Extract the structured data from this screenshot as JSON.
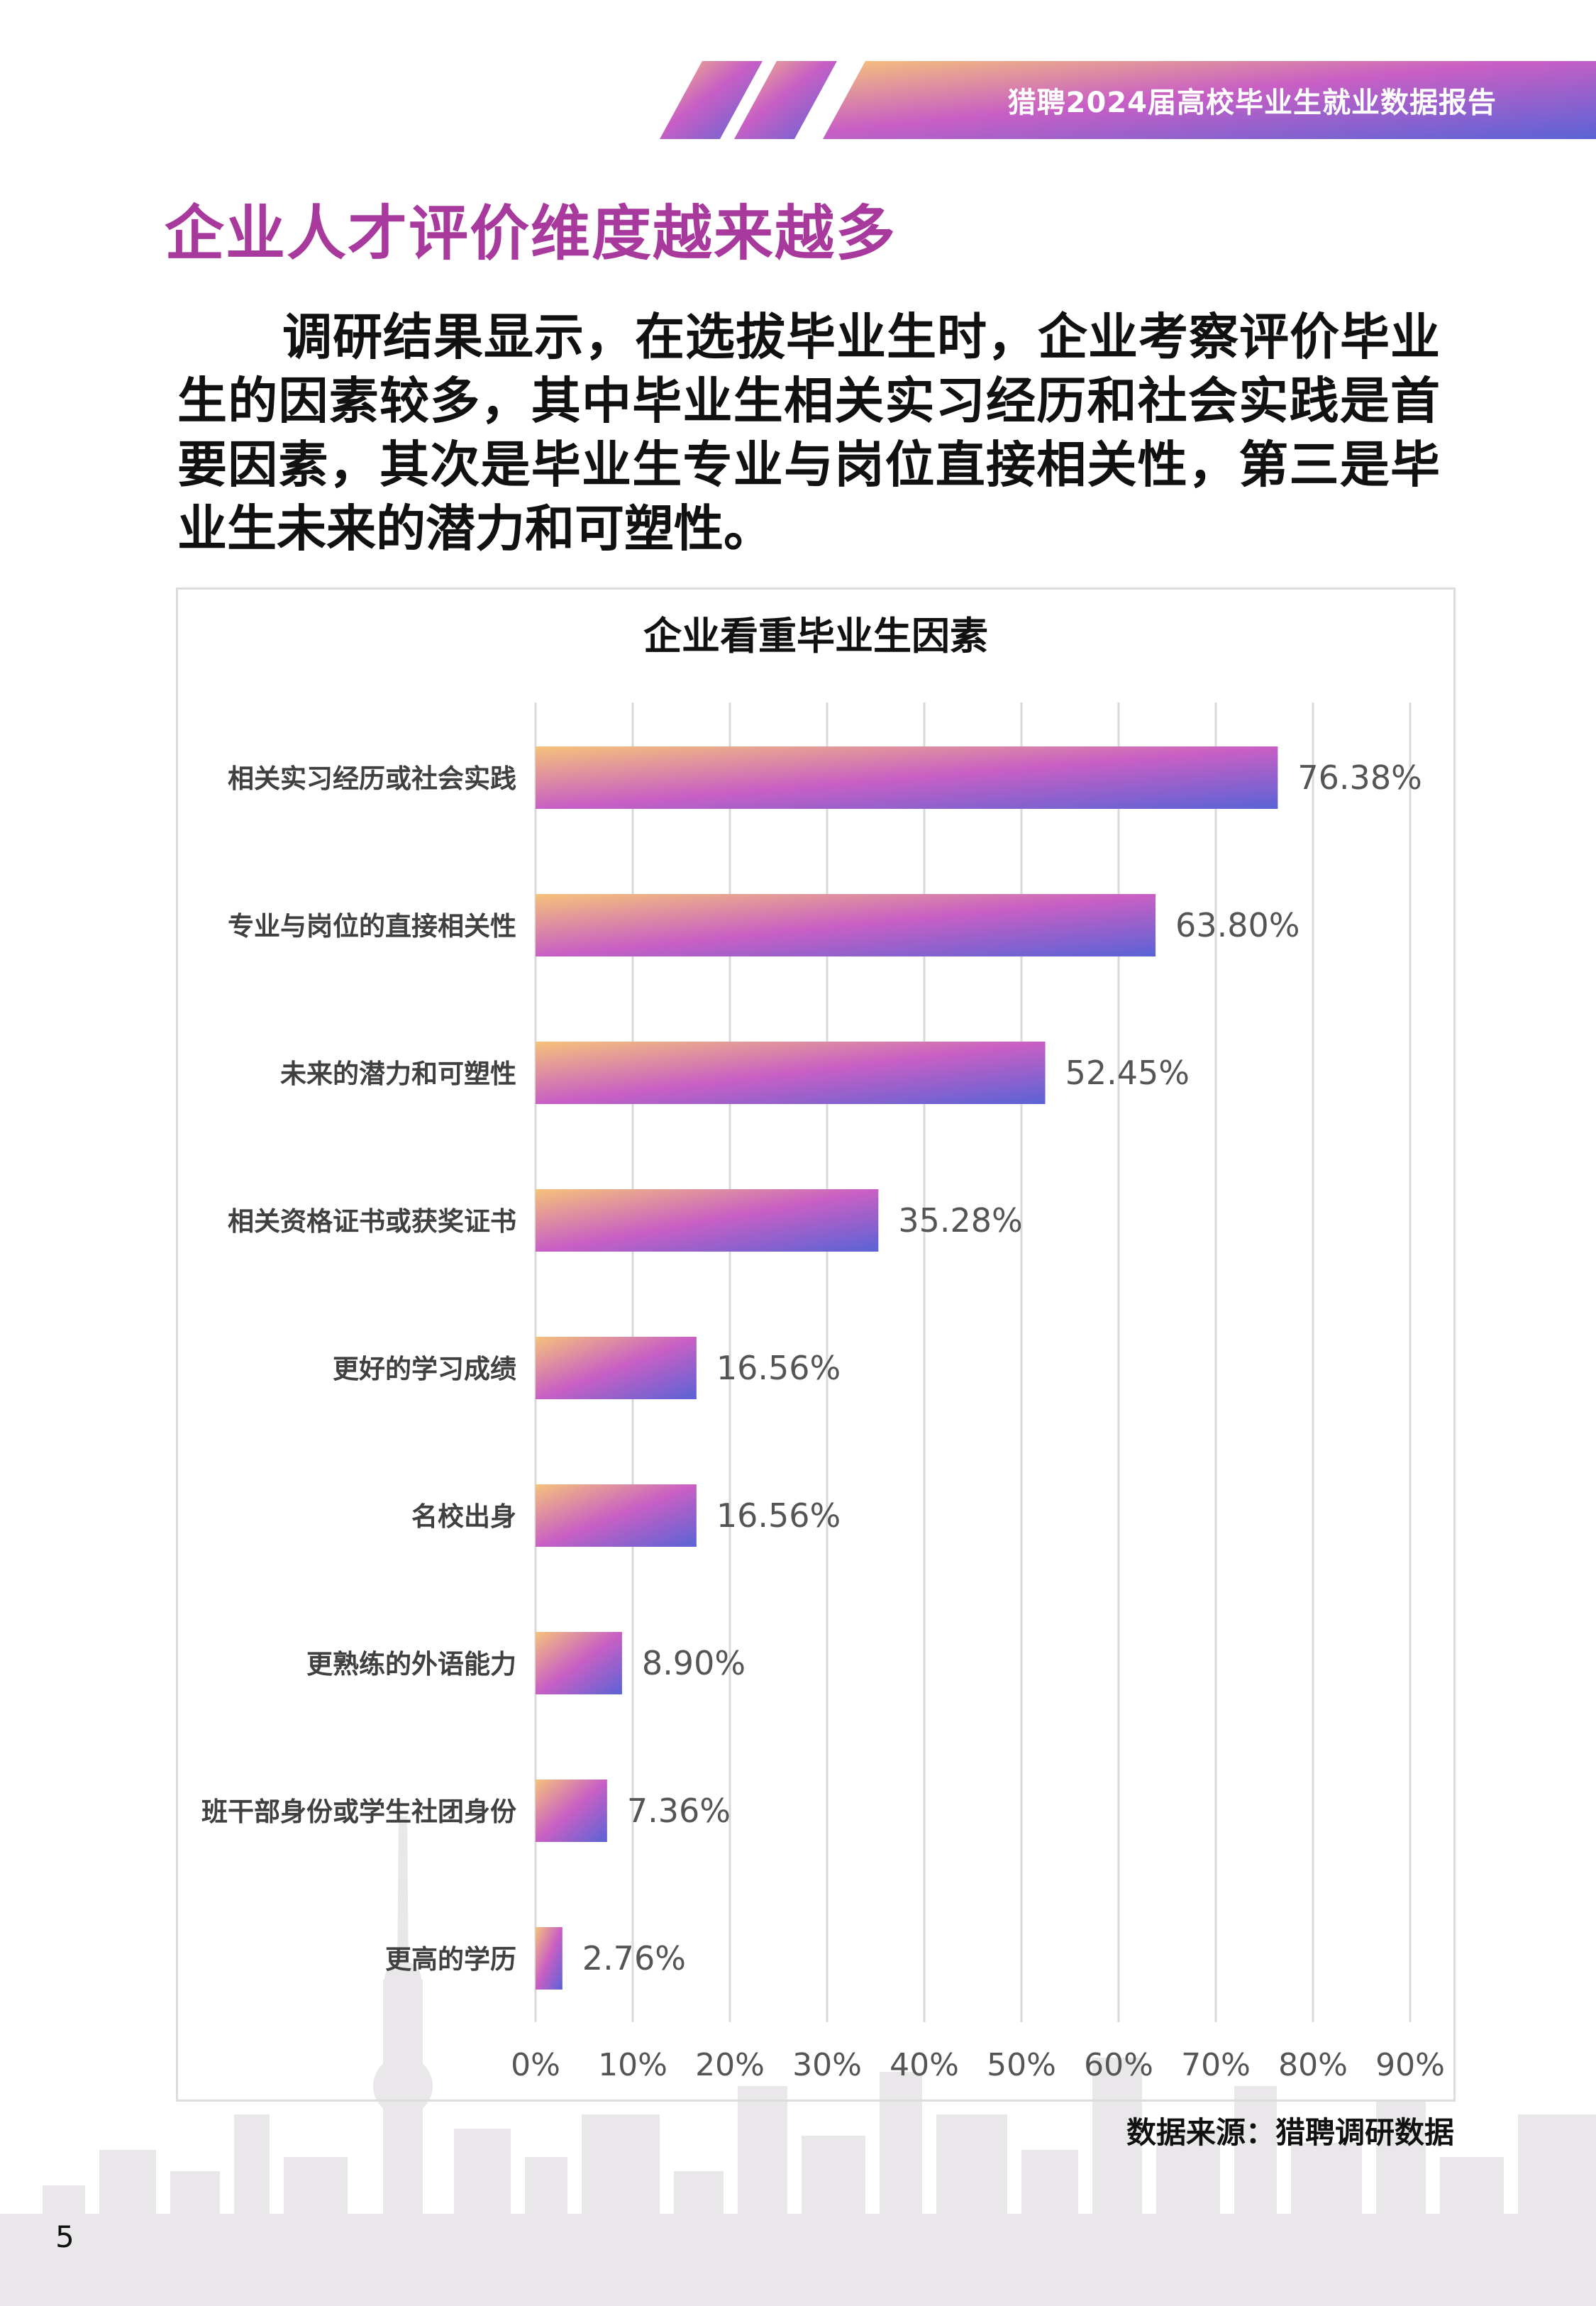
{
  "header": {
    "report_title": "猎聘2024届高校毕业生就业数据报告"
  },
  "page": {
    "heading": "企业人才评价维度越来越多",
    "intro": "调研结果显示，在选拔毕业生时，企业考察评价毕业生的因素较多，其中毕业生相关实习经历和社会实践是首要因素，其次是毕业生专业与岗位直接相关性，第三是毕业生未来的潜力和可塑性。",
    "source": "数据来源：猎聘调研数据",
    "page_number": "5"
  },
  "colors": {
    "accent": "#a93a9d",
    "gradient_start": "#f5c27a",
    "gradient_mid": "#c95fc4",
    "gradient_end": "#5a63d6"
  },
  "chart_data": {
    "type": "bar",
    "orientation": "horizontal",
    "title": "企业看重毕业生因素",
    "categories": [
      "相关实习经历或社会实践",
      "专业与岗位的直接相关性",
      "未来的潜力和可塑性",
      "相关资格证书或获奖证书",
      "更好的学习成绩",
      "名校出身",
      "更熟练的外语能力",
      "班干部身份或学生社团身份",
      "更高的学历"
    ],
    "values": [
      76.38,
      63.8,
      52.45,
      35.28,
      16.56,
      16.56,
      8.9,
      7.36,
      2.76
    ],
    "value_labels": [
      "76.38%",
      "63.80%",
      "52.45%",
      "35.28%",
      "16.56%",
      "16.56%",
      "8.90%",
      "7.36%",
      "2.76%"
    ],
    "xlim": [
      0,
      90
    ],
    "x_ticks": [
      "0%",
      "10%",
      "20%",
      "30%",
      "40%",
      "50%",
      "60%",
      "70%",
      "80%",
      "90%"
    ],
    "grid": true,
    "legend": "none"
  }
}
